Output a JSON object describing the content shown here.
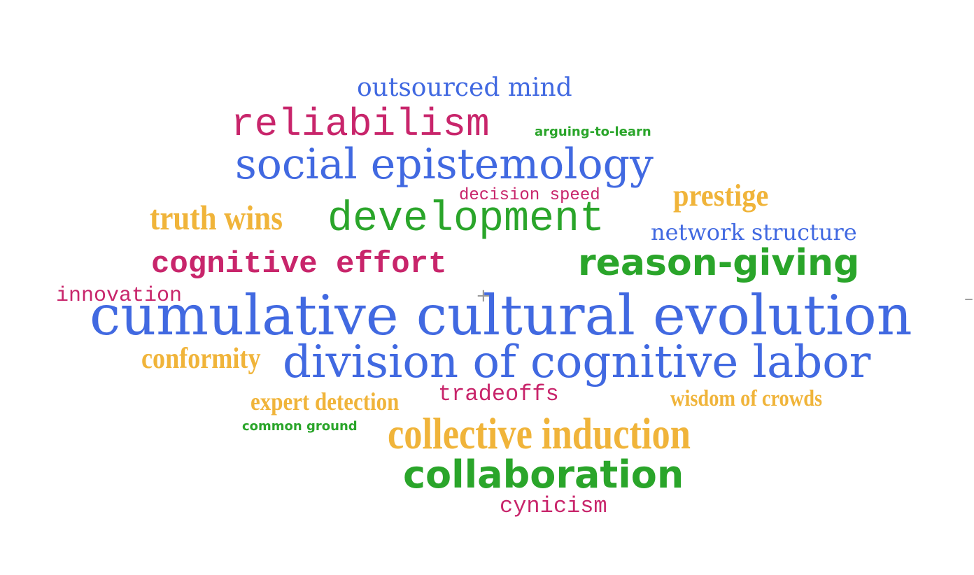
{
  "colors": {
    "blue": "#4169e1",
    "magenta": "#c8256b",
    "gold": "#f0b43a",
    "green": "#2aa52a"
  },
  "words": {
    "outsourced_mind": "outsourced mind",
    "reliabilism": "reliabilism",
    "arguing_to_learn": "arguing-to-learn",
    "social_epistemology": "social epistemology",
    "decision_speed": "decision speed",
    "prestige": "prestige",
    "truth_wins": "truth wins",
    "development": "development",
    "network_structure": "network structure",
    "cognitive_effort": "cognitive effort",
    "reason_giving": "reason-giving",
    "innovation": "innovation",
    "cumulative_cultural_evolution": "cumulative cultural evolution",
    "conformity": "conformity",
    "division_of_cognitive_labor": "division of cognitive labor",
    "expert_detection": "expert detection",
    "tradeoffs": "tradeoffs",
    "wisdom_of_crowds": "wisdom of crowds",
    "common_ground": "common ground",
    "collective_induction": "collective induction",
    "collaboration": "collaboration",
    "cynicism": "cynicism"
  }
}
